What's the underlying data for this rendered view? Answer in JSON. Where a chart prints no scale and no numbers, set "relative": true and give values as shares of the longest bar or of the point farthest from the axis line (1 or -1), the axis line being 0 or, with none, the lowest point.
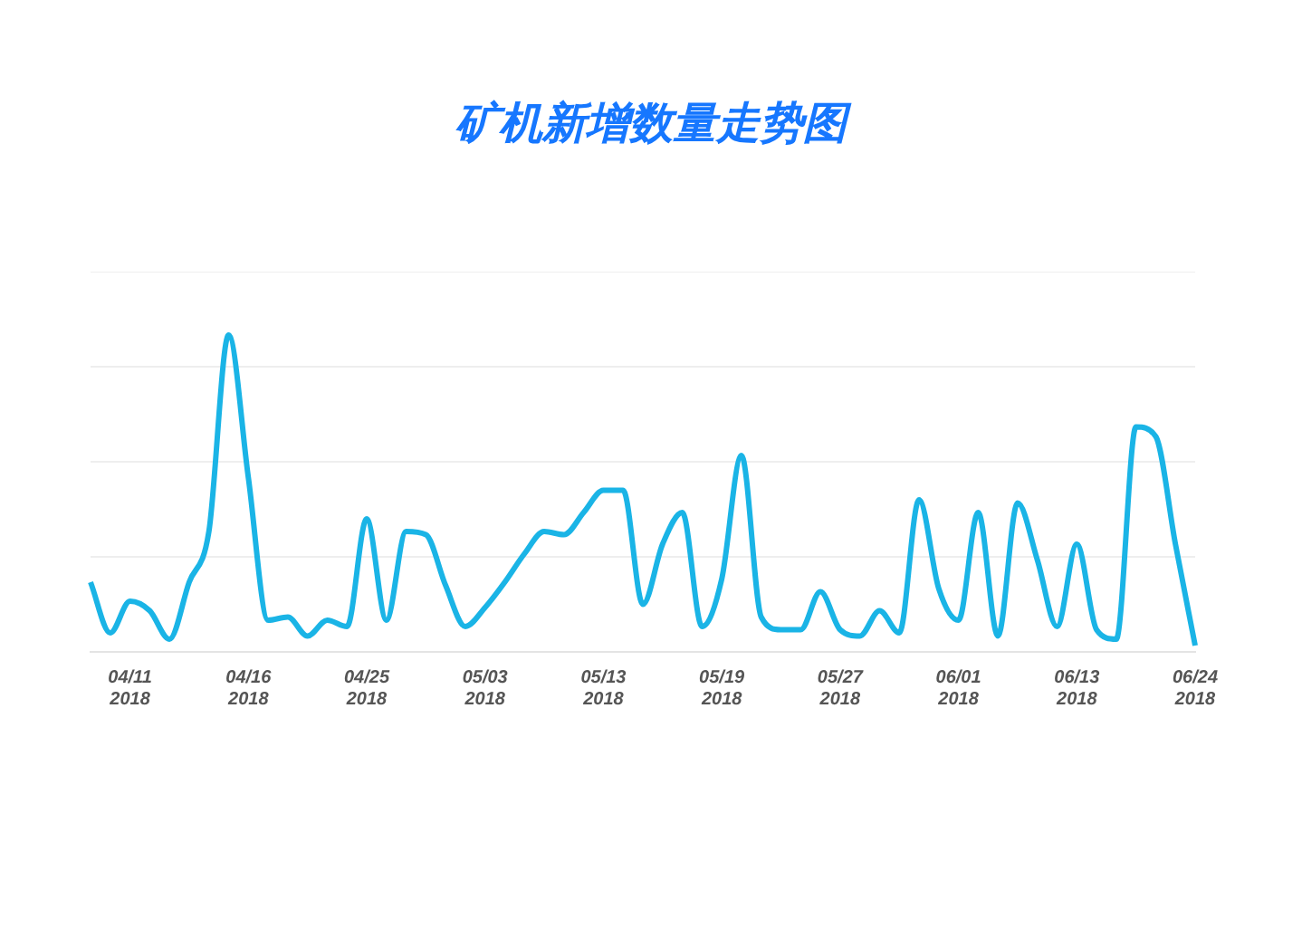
{
  "chart_data": {
    "type": "line",
    "title": "矿机新增数量走势图",
    "relative": true,
    "grid": "y",
    "legend": false,
    "marker": "none",
    "line_style": "solid",
    "categories": [
      null,
      null,
      "04/11\n2018",
      null,
      null,
      null,
      null,
      null,
      "04/16\n2018",
      null,
      null,
      null,
      null,
      null,
      "04/25\n2018",
      null,
      null,
      null,
      null,
      null,
      "05/03\n2018",
      null,
      null,
      null,
      null,
      null,
      "05/13\n2018",
      null,
      null,
      null,
      null,
      null,
      "05/19\n2018",
      null,
      null,
      null,
      null,
      null,
      "05/27\n2018",
      null,
      null,
      null,
      null,
      null,
      "06/01\n2018",
      null,
      null,
      null,
      null,
      null,
      "06/13\n2018",
      null,
      null,
      null,
      null,
      null,
      "06/24\n2018"
    ],
    "series": [
      {
        "color": "#1ab4e6",
        "values": [
          0.22,
          0.06,
          0.16,
          0.13,
          0.04,
          0.22,
          0.38,
          1.0,
          0.55,
          0.1,
          0.11,
          0.05,
          0.1,
          0.08,
          0.42,
          0.1,
          0.38,
          0.37,
          0.21,
          0.08,
          0.14,
          0.22,
          0.31,
          0.38,
          0.37,
          0.44,
          0.51,
          0.51,
          0.15,
          0.34,
          0.44,
          0.08,
          0.23,
          0.62,
          0.11,
          0.07,
          0.07,
          0.19,
          0.07,
          0.05,
          0.13,
          0.06,
          0.48,
          0.2,
          0.1,
          0.44,
          0.05,
          0.47,
          0.29,
          0.08,
          0.34,
          0.07,
          0.04,
          0.71,
          0.68,
          0.34,
          0.02
        ]
      }
    ]
  }
}
